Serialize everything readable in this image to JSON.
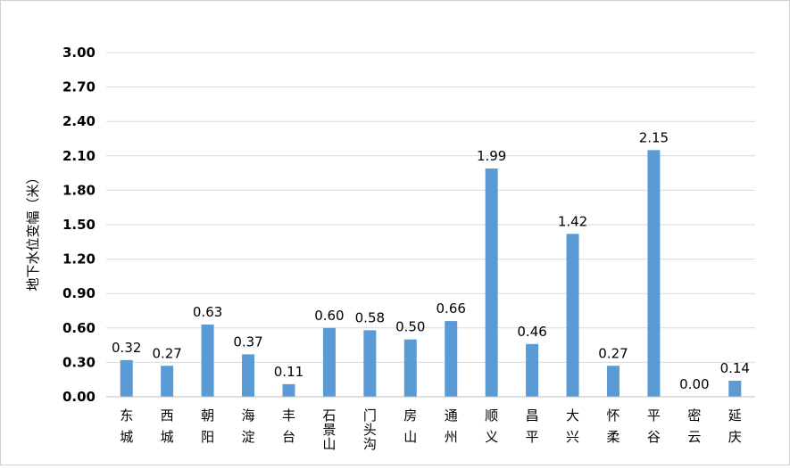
{
  "chart_data": {
    "type": "bar",
    "ylabel": "地下水位变幅（米）",
    "xlabel": "",
    "title": "",
    "ylim": [
      0,
      3.0
    ],
    "yticks": [
      "0.00",
      "0.30",
      "0.60",
      "0.90",
      "1.20",
      "1.50",
      "1.80",
      "2.10",
      "2.40",
      "2.70",
      "3.00"
    ],
    "grid": true,
    "legend": "none",
    "bar_color": "#5b9bd5",
    "categories": [
      "东城",
      "西城",
      "朝阳",
      "海淀",
      "丰台",
      "石景山",
      "门头沟",
      "房山",
      "通州",
      "顺义",
      "昌平",
      "大兴",
      "怀柔",
      "平谷",
      "密云",
      "延庆"
    ],
    "values": [
      0.32,
      0.27,
      0.63,
      0.37,
      0.11,
      0.6,
      0.58,
      0.5,
      0.66,
      1.99,
      0.46,
      1.42,
      0.27,
      2.15,
      0.0,
      0.14
    ],
    "data_labels": [
      "0.32",
      "0.27",
      "0.63",
      "0.37",
      "0.11",
      "0.60",
      "0.58",
      "0.50",
      "0.66",
      "1.99",
      "0.46",
      "1.42",
      "0.27",
      "2.15",
      "0.00",
      "0.14"
    ]
  }
}
